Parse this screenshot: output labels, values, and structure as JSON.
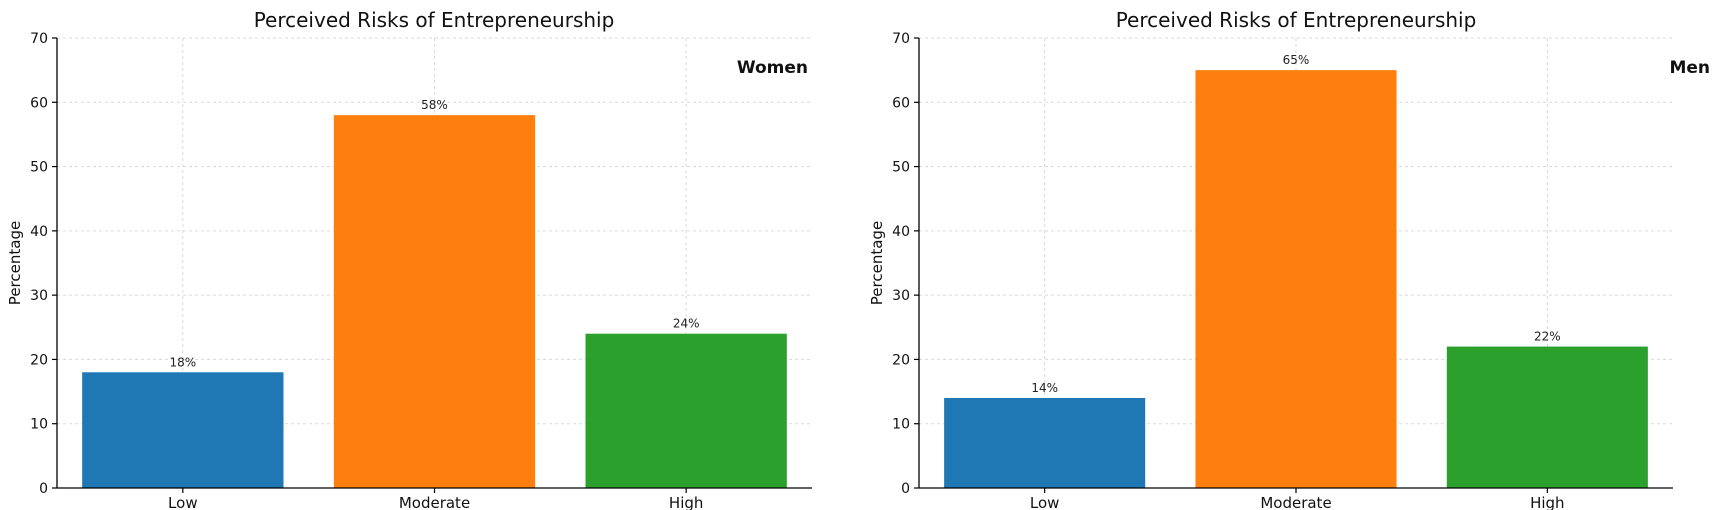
{
  "chart_data": [
    {
      "type": "bar",
      "title": "Perceived Risks of Entrepreneurship",
      "xlabel": "",
      "ylabel": "Percentage",
      "ylim": [
        0,
        70
      ],
      "yticks": [
        0,
        10,
        20,
        30,
        40,
        50,
        60,
        70
      ],
      "grid": true,
      "categories": [
        "Low",
        "Moderate",
        "High"
      ],
      "values": [
        18,
        58,
        24
      ],
      "data_labels": [
        "18%",
        "58%",
        "24%"
      ],
      "colors": [
        "#1f77b4",
        "#ff7f0e",
        "#2ca02c"
      ],
      "annotation": "Women"
    },
    {
      "type": "bar",
      "title": "Perceived Risks of Entrepreneurship",
      "xlabel": "",
      "ylabel": "Percentage",
      "ylim": [
        0,
        70
      ],
      "yticks": [
        0,
        10,
        20,
        30,
        40,
        50,
        60,
        70
      ],
      "grid": true,
      "categories": [
        "Low",
        "Moderate",
        "High"
      ],
      "values": [
        14,
        65,
        22
      ],
      "data_labels": [
        "14%",
        "65%",
        "22%"
      ],
      "colors": [
        "#1f77b4",
        "#ff7f0e",
        "#2ca02c"
      ],
      "annotation": "Men"
    }
  ]
}
